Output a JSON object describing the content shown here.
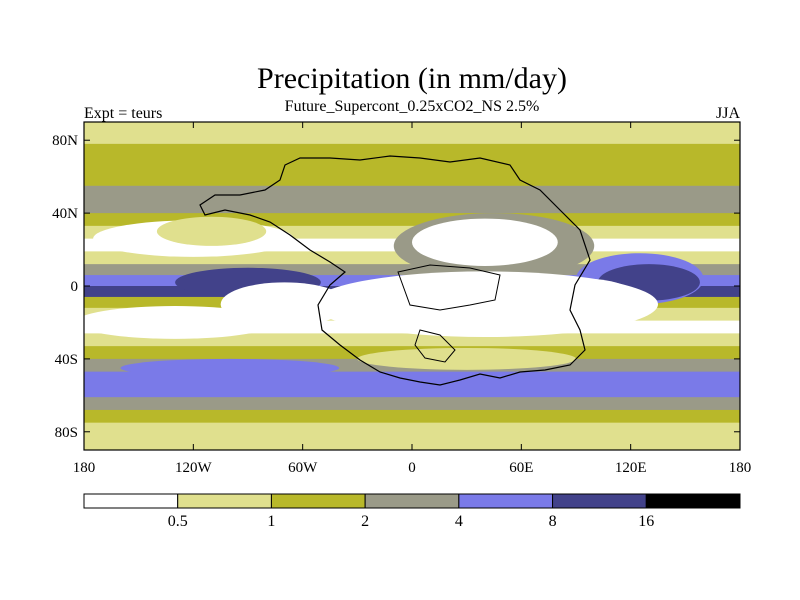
{
  "chart_data": {
    "type": "heatmap",
    "title": "Precipitation (in mm/day)",
    "subtitle": "Future_Supercont_0.25xCO2_NS 2.5%",
    "left_label": "Expt = teurs",
    "right_label": "JJA",
    "x_ticks": [
      "180",
      "120W",
      "60W",
      "0",
      "60E",
      "120E",
      "180"
    ],
    "y_ticks": [
      "80N",
      "40N",
      "0",
      "40S",
      "80S"
    ],
    "x_tick_values": [
      -180,
      -120,
      -60,
      0,
      60,
      120,
      180
    ],
    "y_tick_values": [
      80,
      40,
      0,
      -40,
      -80
    ],
    "xlim": [
      -180,
      180
    ],
    "ylim": [
      -90,
      90
    ],
    "colorbar": {
      "levels": [
        "0.5",
        "1",
        "2",
        "4",
        "8",
        "16"
      ],
      "colors": [
        "#ffffff",
        "#e0e08e",
        "#b8b82a",
        "#9a9a88",
        "#7a7ae8",
        "#42428a",
        "#000000"
      ]
    },
    "bands": [
      {
        "lat": 90,
        "level": 1
      },
      {
        "lat": 85,
        "level": 1
      },
      {
        "lat": 78,
        "level": 2
      },
      {
        "lat": 70,
        "level": 2
      },
      {
        "lat": 62,
        "level": 2
      },
      {
        "lat": 55,
        "level": 3
      },
      {
        "lat": 48,
        "level": 3
      },
      {
        "lat": 40,
        "level": 2
      },
      {
        "lat": 33,
        "level": 1
      },
      {
        "lat": 26,
        "level": 0
      },
      {
        "lat": 19,
        "level": 1
      },
      {
        "lat": 12,
        "level": 3
      },
      {
        "lat": 6,
        "level": 4
      },
      {
        "lat": 0,
        "level": 5
      },
      {
        "lat": -6,
        "level": 2
      },
      {
        "lat": -12,
        "level": 1
      },
      {
        "lat": -19,
        "level": 0
      },
      {
        "lat": -26,
        "level": 1
      },
      {
        "lat": -33,
        "level": 2
      },
      {
        "lat": -40,
        "level": 3
      },
      {
        "lat": -47,
        "level": 4
      },
      {
        "lat": -54,
        "level": 4
      },
      {
        "lat": -61,
        "level": 3
      },
      {
        "lat": -68,
        "level": 2
      },
      {
        "lat": -75,
        "level": 1
      },
      {
        "lat": -82,
        "level": 1
      },
      {
        "lat": -90,
        "level": 1
      }
    ],
    "regions": [
      {
        "lon": 45,
        "lat": 22,
        "rx": 55,
        "ry": 18,
        "level": 3
      },
      {
        "lon": 40,
        "lat": 24,
        "rx": 40,
        "ry": 13,
        "level": 0
      },
      {
        "lon": -120,
        "lat": 26,
        "rx": 55,
        "ry": 10,
        "level": 0
      },
      {
        "lon": -110,
        "lat": 30,
        "rx": 30,
        "ry": 8,
        "level": 1
      },
      {
        "lon": -90,
        "lat": 2,
        "rx": 40,
        "ry": 8,
        "level": 5
      },
      {
        "lon": 125,
        "lat": 4,
        "rx": 35,
        "ry": 14,
        "level": 4
      },
      {
        "lon": 130,
        "lat": 2,
        "rx": 28,
        "ry": 10,
        "level": 5
      },
      {
        "lon": 40,
        "lat": -10,
        "rx": 95,
        "ry": 18,
        "level": 0
      },
      {
        "lon": -70,
        "lat": -10,
        "rx": 35,
        "ry": 12,
        "level": 0
      },
      {
        "lon": 95,
        "lat": -8,
        "rx": 30,
        "ry": 12,
        "level": 0
      },
      {
        "lon": -130,
        "lat": -20,
        "rx": 55,
        "ry": 9,
        "level": 0
      },
      {
        "lon": 30,
        "lat": -40,
        "rx": 60,
        "ry": 6,
        "level": 1
      },
      {
        "lon": -100,
        "lat": -45,
        "rx": 60,
        "ry": 5,
        "level": 4
      }
    ]
  }
}
